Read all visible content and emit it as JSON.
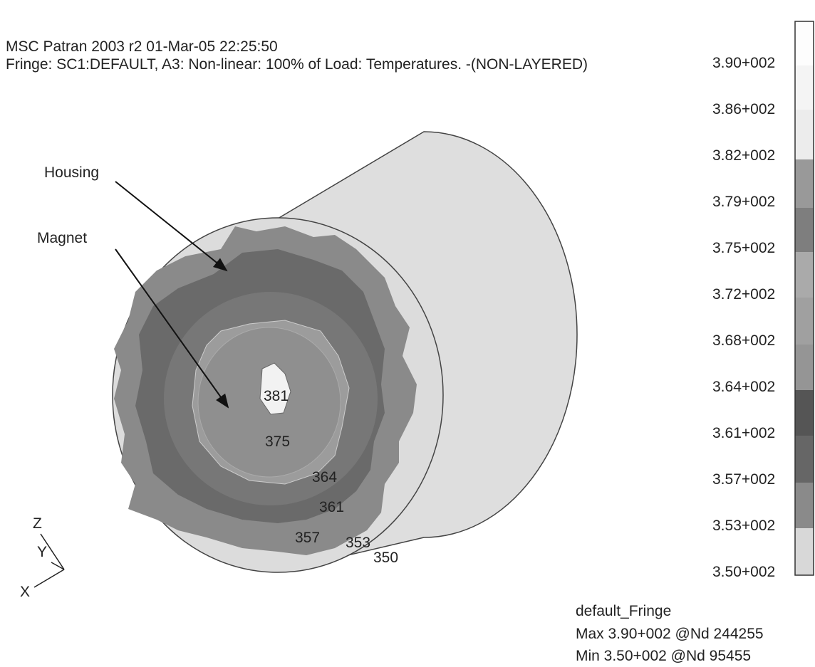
{
  "header": {
    "line1": "MSC Patran 2003 r2 01-Mar-05 22:25:50",
    "line2": "Fringe: SC1:DEFAULT, A3: Non-linear: 100% of Load: Temperatures. -(NON-LAYERED)"
  },
  "annotations": [
    "Housing",
    "Magnet"
  ],
  "contour_labels": [
    "381",
    "375",
    "364",
    "361",
    "357",
    "353",
    "350"
  ],
  "triad": [
    "Z",
    "Y",
    "X"
  ],
  "legend": [
    "3.90+002",
    "3.86+002",
    "3.82+002",
    "3.79+002",
    "3.75+002",
    "3.72+002",
    "3.68+002",
    "3.64+002",
    "3.61+002",
    "3.57+002",
    "3.53+002",
    "3.50+002"
  ],
  "footer": [
    "default_Fringe",
    "Max 3.90+002 @Nd 244255",
    "Min 3.50+002 @Nd 95455"
  ]
}
